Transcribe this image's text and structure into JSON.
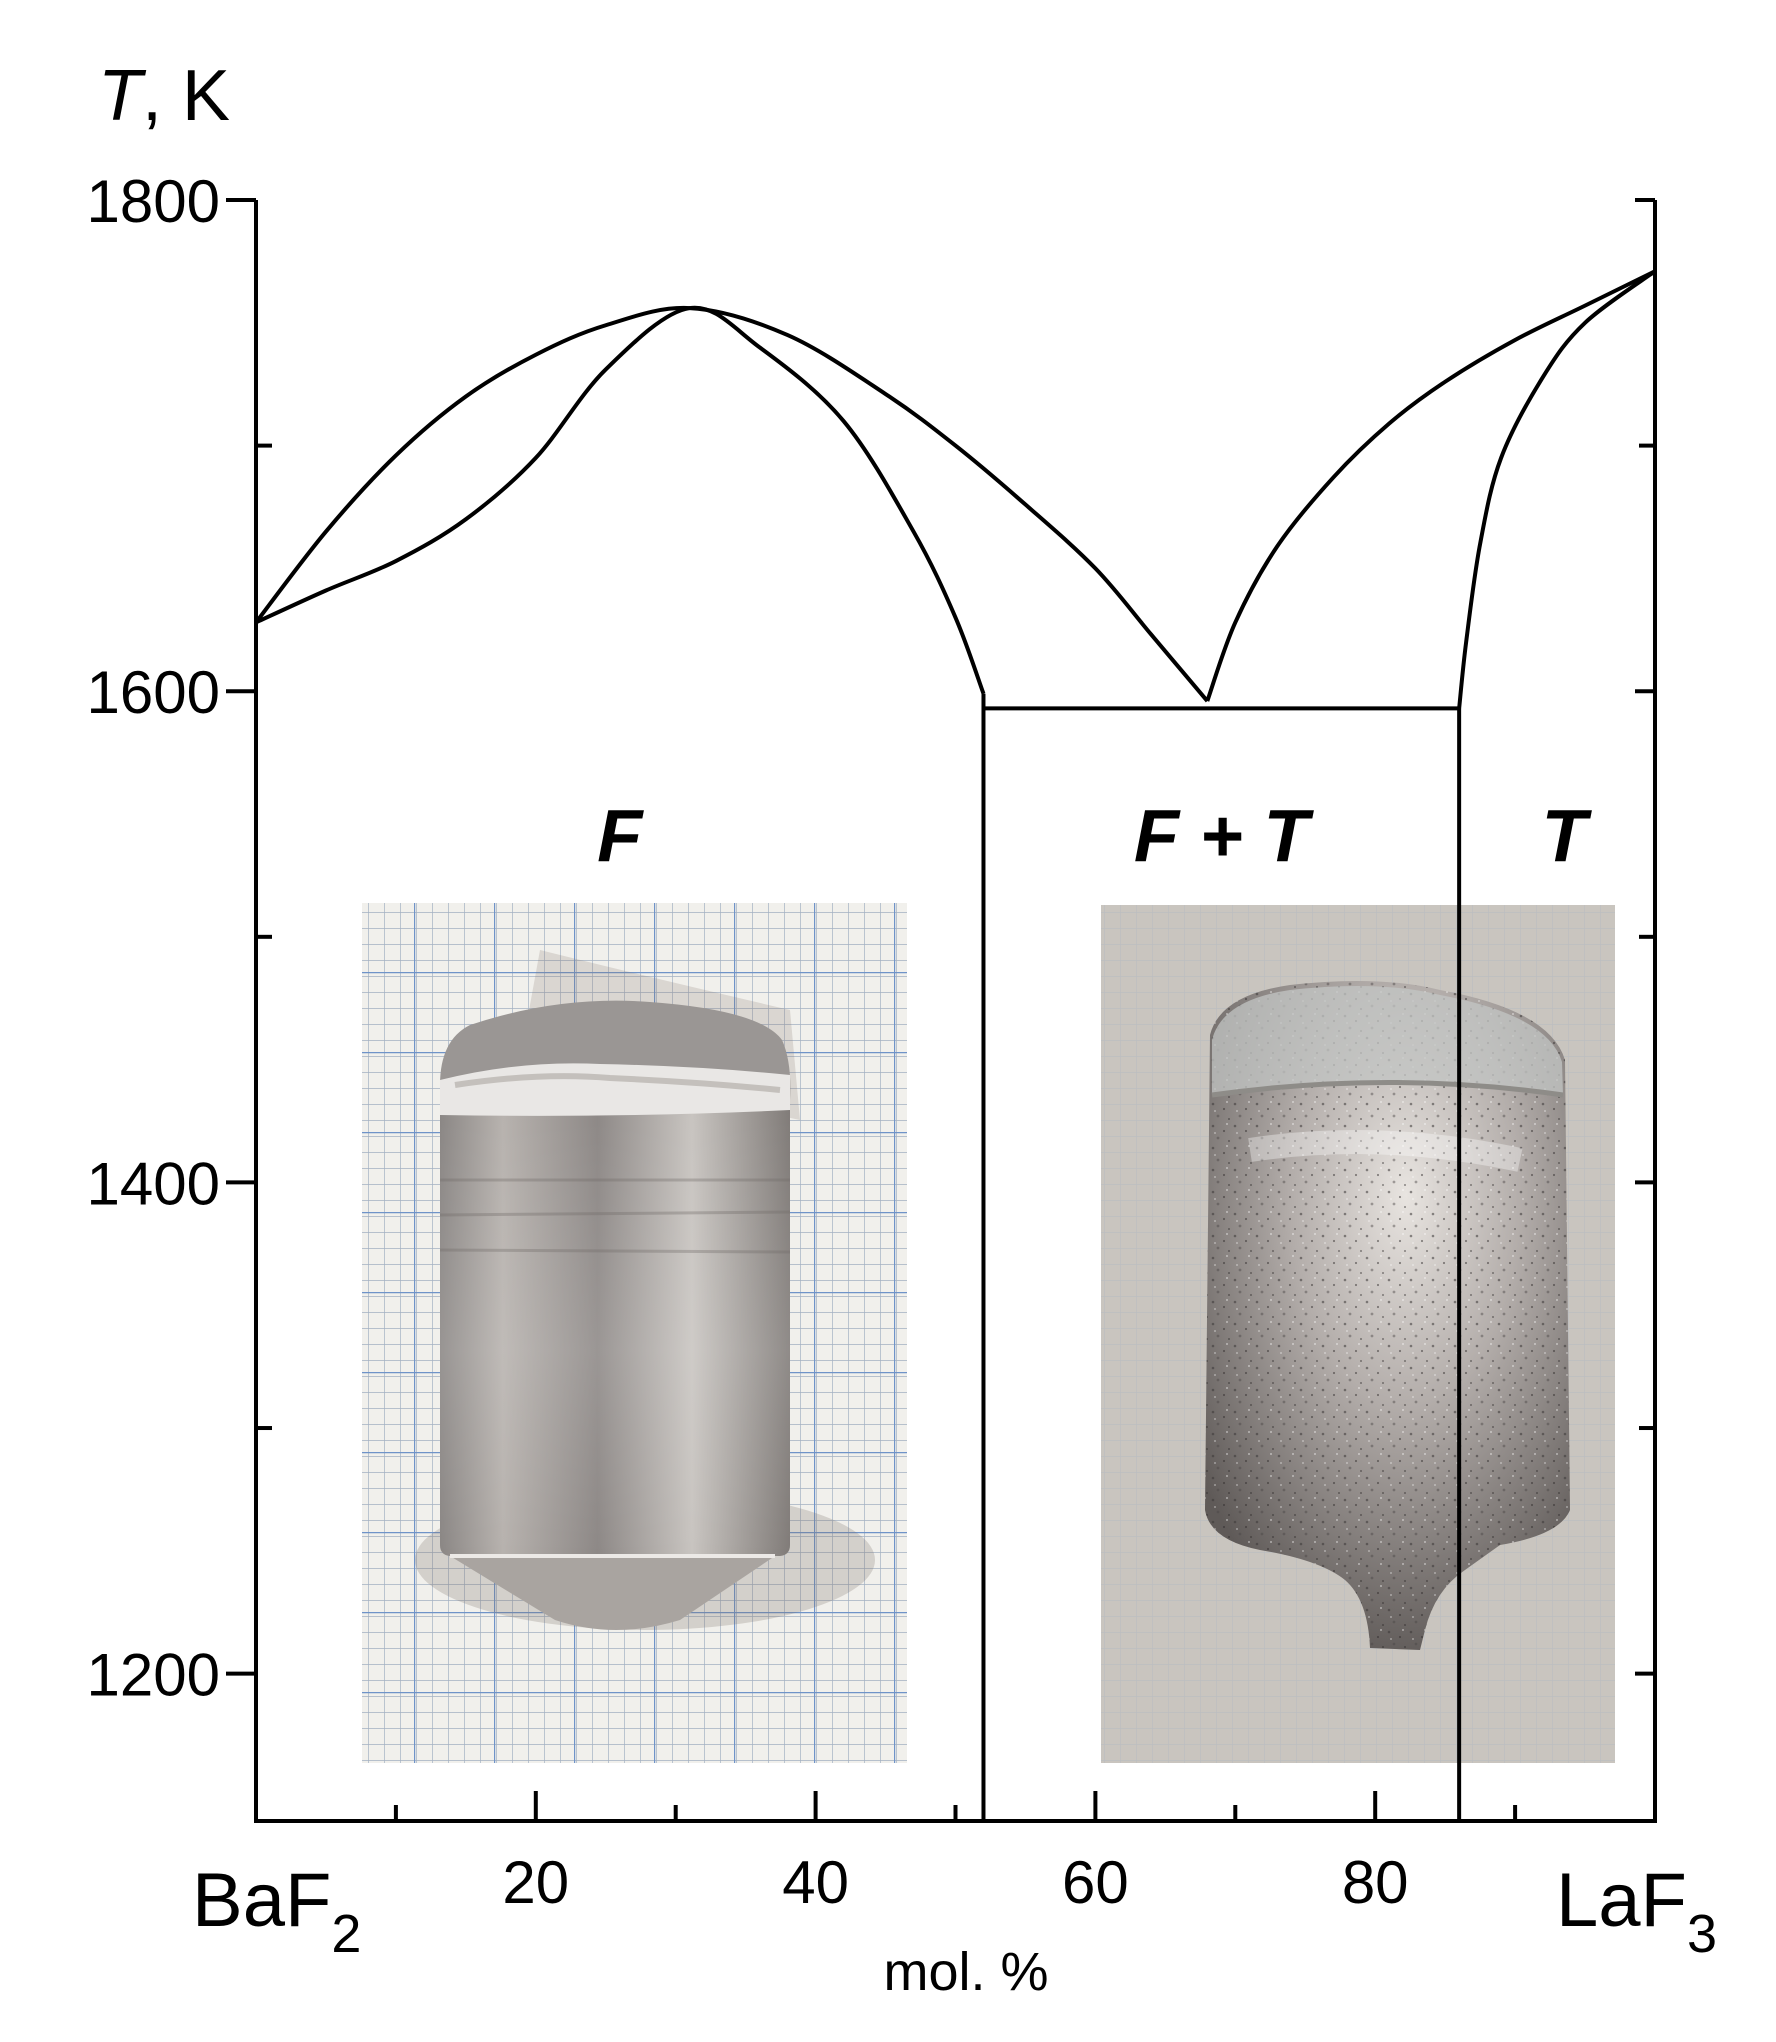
{
  "chart_data": {
    "type": "line",
    "title": "",
    "ylabel": {
      "italic": "T",
      "rest": ", K"
    },
    "xlabel": "mol. %",
    "xlim": [
      0,
      100
    ],
    "ylim": [
      1140,
      1800
    ],
    "x_endpoint_labels": {
      "left": {
        "base": "BaF",
        "sub": "2"
      },
      "right": {
        "base": "LaF",
        "sub": "3"
      }
    },
    "x_ticks_labeled": [
      20,
      40,
      60,
      80
    ],
    "x_ticks_minor": [
      10,
      30,
      50,
      70,
      90
    ],
    "y_ticks_labeled": [
      1200,
      1400,
      1600,
      1800
    ],
    "y_ticks_minor": [
      1300,
      1500,
      1700
    ],
    "series": [
      {
        "values": [
          [
            0,
            1628
          ],
          [
            5,
            1665
          ],
          [
            10,
            1696
          ],
          [
            15,
            1720
          ],
          [
            20,
            1737
          ],
          [
            25,
            1749
          ],
          [
            31,
            1756
          ],
          [
            38,
            1745
          ],
          [
            45,
            1721
          ],
          [
            50,
            1700
          ],
          [
            55,
            1676
          ],
          [
            60,
            1650
          ],
          [
            64,
            1623
          ],
          [
            68,
            1596
          ]
        ]
      },
      {
        "values": [
          [
            0,
            1628
          ],
          [
            5,
            1641
          ],
          [
            10,
            1653
          ],
          [
            15,
            1670
          ],
          [
            20,
            1695
          ],
          [
            25,
            1731
          ],
          [
            31,
            1756
          ],
          [
            36,
            1740
          ],
          [
            42,
            1710
          ],
          [
            47,
            1665
          ],
          [
            50,
            1630
          ],
          [
            52,
            1599
          ]
        ]
      },
      {
        "values": [
          [
            68,
            1596
          ],
          [
            70,
            1628
          ],
          [
            73,
            1659
          ],
          [
            77,
            1687
          ],
          [
            81,
            1709
          ],
          [
            85,
            1726
          ],
          [
            90,
            1743
          ],
          [
            95,
            1757
          ],
          [
            100,
            1771
          ]
        ]
      },
      {
        "values": [
          [
            86,
            1593
          ],
          [
            86.5,
            1620
          ],
          [
            87.5,
            1660
          ],
          [
            89,
            1695
          ],
          [
            92,
            1728
          ],
          [
            95,
            1750
          ],
          [
            100,
            1771
          ]
        ]
      },
      {
        "values": [
          [
            52,
            1593
          ],
          [
            60,
            1593
          ],
          [
            68,
            1593
          ],
          [
            76,
            1593
          ],
          [
            86,
            1593
          ]
        ]
      },
      {
        "values": [
          [
            52,
            1140
          ],
          [
            52,
            1599
          ]
        ]
      },
      {
        "values": [
          [
            86,
            1140
          ],
          [
            86,
            1593
          ]
        ]
      }
    ],
    "annotations": [
      {
        "text": "F",
        "x": 26,
        "y": 1542
      },
      {
        "text": "F + T",
        "x": 69,
        "y": 1542
      },
      {
        "text": "T",
        "x": 93.5,
        "y": 1542
      }
    ]
  },
  "photos": [
    {
      "name": "crystal-photo-f"
    },
    {
      "name": "crystal-photo-f-plus-t"
    }
  ]
}
